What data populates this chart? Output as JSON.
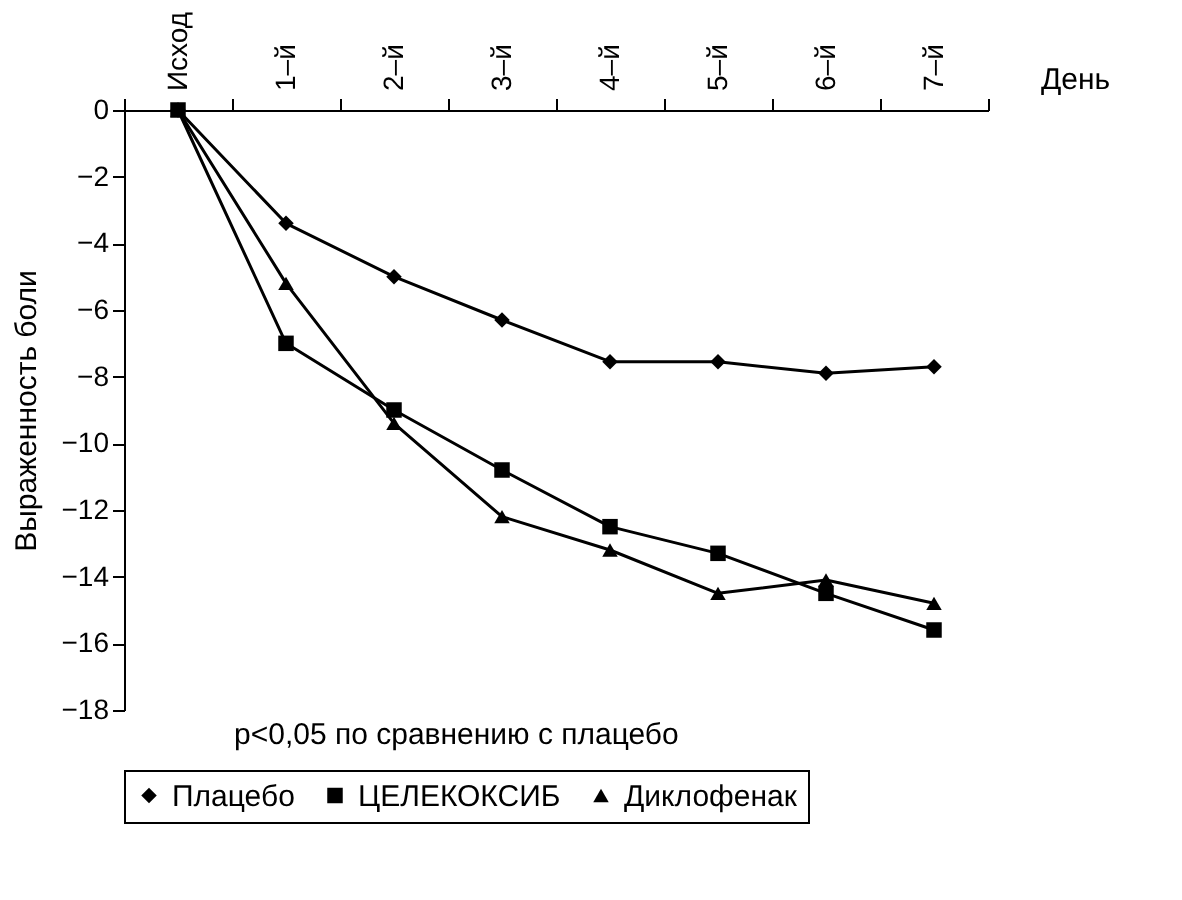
{
  "chart_data": {
    "type": "line",
    "xlabel": "День",
    "ylabel": "Выраженность боли",
    "categories": [
      "Исход",
      "1–й",
      "2–й",
      "3–й",
      "4–й",
      "5–й",
      "6–й",
      "7–й"
    ],
    "series": [
      {
        "name": "Плацебо",
        "color": "#000000",
        "marker": "diamond",
        "values": [
          0,
          -3.4,
          -5.0,
          -6.3,
          -7.55,
          -7.55,
          -7.9,
          -7.7
        ]
      },
      {
        "name": "ЦЕЛЕКОКСИБ",
        "color": "#000000",
        "marker": "square",
        "values": [
          0,
          -7.0,
          -9.0,
          -10.8,
          -12.5,
          -13.3,
          -14.5,
          -15.6
        ]
      },
      {
        "name": "Диклофенак",
        "color": "#000000",
        "marker": "triangle",
        "values": [
          0,
          -5.2,
          -9.4,
          -12.2,
          -13.2,
          -14.5,
          -14.1,
          -14.8
        ]
      }
    ],
    "ylim": [
      -18,
      0
    ],
    "yticks": [
      0,
      {
        "value": -2,
        "label": "−2"
      },
      {
        "value": -4,
        "label": "−4"
      },
      {
        "value": -6,
        "label": "−6"
      },
      {
        "value": -8,
        "label": "−8"
      },
      {
        "value": -10,
        "label": "−10"
      },
      {
        "value": -12,
        "label": "−12"
      },
      {
        "value": -14,
        "label": "−14"
      },
      {
        "value": -16,
        "label": "−16"
      },
      {
        "value": -18,
        "label": "−18"
      }
    ],
    "annotations": [
      "p<0,05 по сравнению с плацебо"
    ],
    "legend": "bottom",
    "grid": false,
    "line_style": "solid"
  }
}
